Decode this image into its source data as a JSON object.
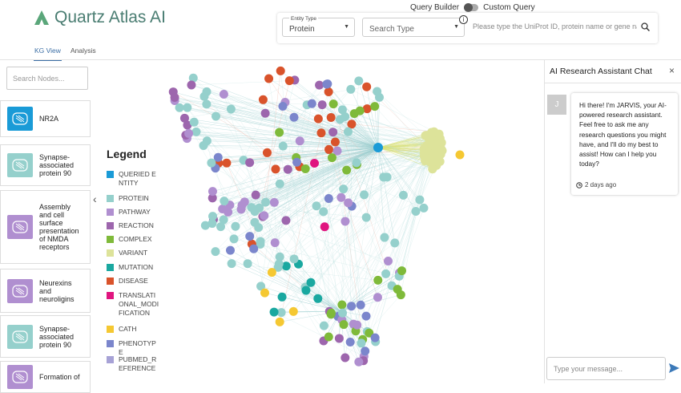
{
  "header": {
    "logo": "Quartz Atlas AI",
    "query_builder": "Query Builder",
    "custom_query": "Custom Query"
  },
  "search": {
    "entity_type_label": "Entity Type",
    "entity_type_value": "Protein",
    "search_type": "Search Type",
    "placeholder": "Please type the UniProt ID, protein name or gene na"
  },
  "tabs": [
    "KG View",
    "Analysis"
  ],
  "sidebar": {
    "search_placeholder": "Search Nodes...",
    "items": [
      {
        "label": "NR2A",
        "color": "#1a9bd7"
      },
      {
        "label": "Synapse-associated protein 90",
        "color": "#95d0cc"
      },
      {
        "label": "Assembly and cell surface presentation of NMDA receptors",
        "color": "#b08fd0"
      },
      {
        "label": "Neurexins and neuroligins",
        "color": "#b08fd0"
      },
      {
        "label": "Synapse-associated protein 90",
        "color": "#95d0cc"
      },
      {
        "label": "Formation of",
        "color": "#b08fd0"
      }
    ]
  },
  "legend": {
    "title": "Legend",
    "items": [
      {
        "label": "QUERIED ENTITY",
        "color": "#1a9bd7"
      },
      {
        "label": "PROTEIN",
        "color": "#95d0cc"
      },
      {
        "label": "PATHWAY",
        "color": "#b08fd0"
      },
      {
        "label": "REACTION",
        "color": "#9d66ad"
      },
      {
        "label": "COMPLEX",
        "color": "#7fba3a"
      },
      {
        "label": "VARIANT",
        "color": "#dde39a"
      },
      {
        "label": "MUTATION",
        "color": "#1aa8a0"
      },
      {
        "label": "DISEASE",
        "color": "#d9532b"
      },
      {
        "label": "TRANSLATIONAL_MODIFICATION",
        "color": "#e0157f"
      },
      {
        "label": "CATH",
        "color": "#f5c832"
      },
      {
        "label": "PHENOTYPE",
        "color": "#7b86cc"
      },
      {
        "label": "PUBMED_REFERENCE",
        "color": "#a7a2d6"
      }
    ]
  },
  "chat": {
    "title": "AI Research Assistant Chat",
    "avatar": "J",
    "message": "Hi there! I'm JARVIS, your AI-powered research assistant. Feel free to ask me any research questions you might have, and I'll do my best to assist! How can I help you today?",
    "time": "2 days ago",
    "input_placeholder": "Type your message..."
  }
}
